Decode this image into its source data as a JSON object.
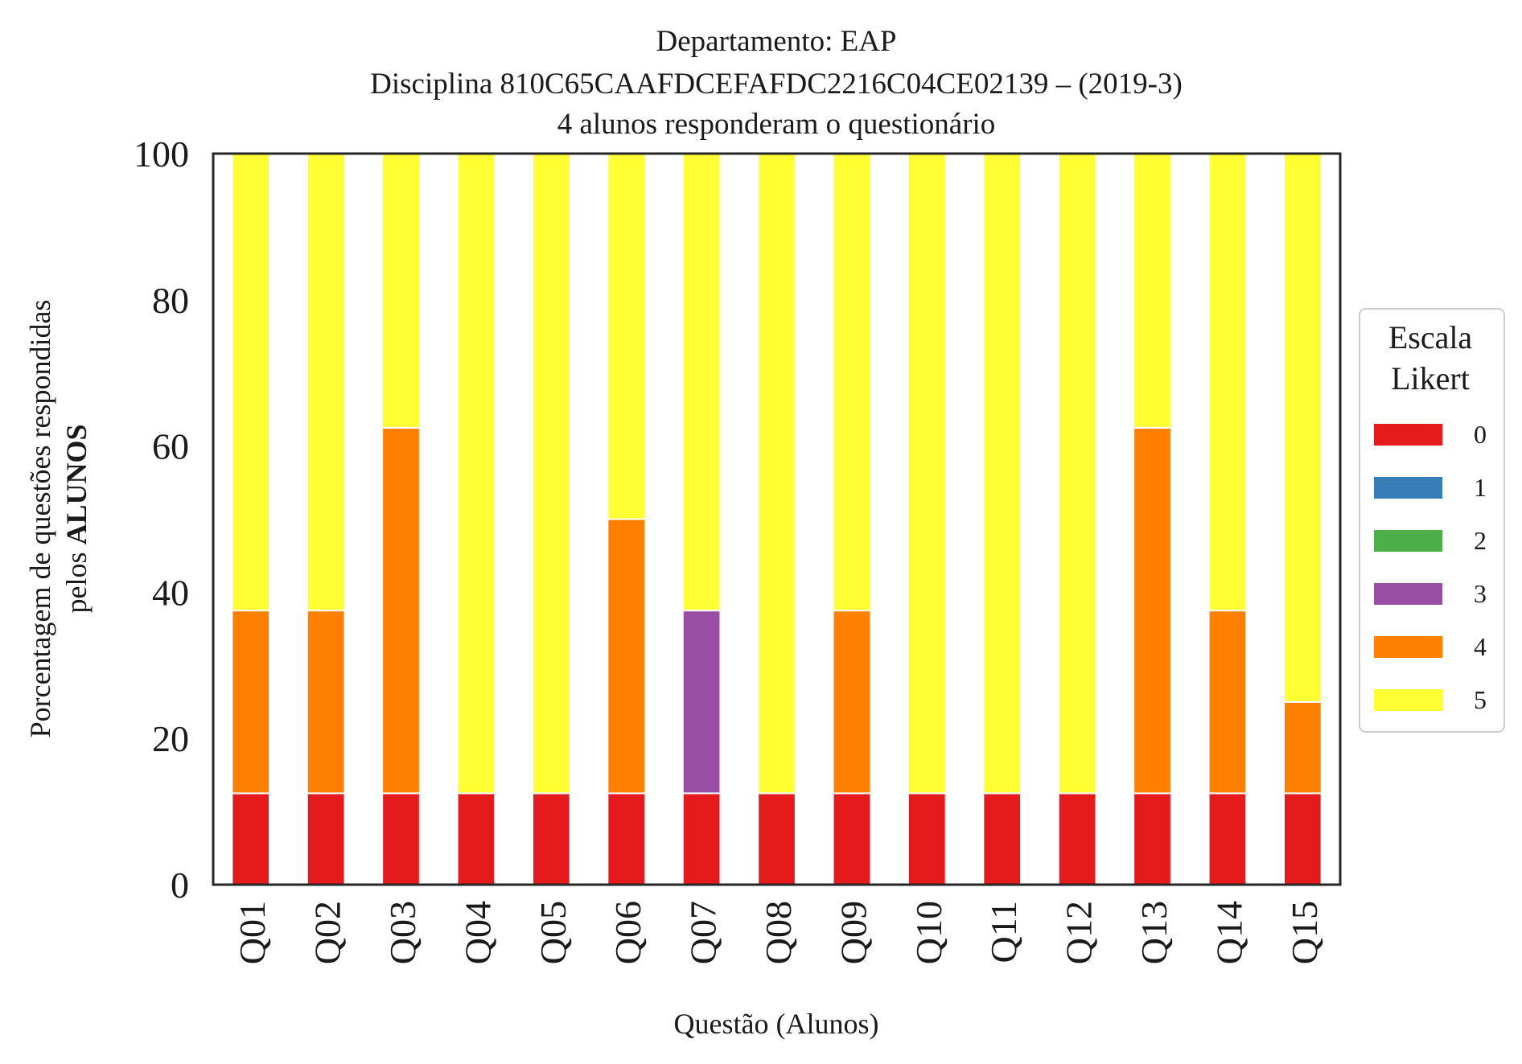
{
  "chart_data": {
    "type": "bar",
    "stacked": true,
    "title": [
      "Departamento: EAP",
      "Disciplina 810C65CAAFDCEFAFDC2216C04CE02139 – (2019-3)",
      "4 alunos responderam o questionário"
    ],
    "xlabel": "Questão (Alunos)",
    "ylabel_line1": "Porcentagem de questões respondidas",
    "ylabel_line2_prefix": "pelos ",
    "ylabel_line2_bold": "ALUNOS",
    "ylim": [
      0,
      100
    ],
    "yticks": [
      "0",
      "20",
      "40",
      "60",
      "80",
      "100"
    ],
    "grid": false,
    "legend": {
      "title": [
        "Escala",
        "Likert"
      ],
      "placement": "right-center"
    },
    "categories": [
      "Q01",
      "Q02",
      "Q03",
      "Q04",
      "Q05",
      "Q06",
      "Q07",
      "Q08",
      "Q09",
      "Q10",
      "Q11",
      "Q12",
      "Q13",
      "Q14",
      "Q15"
    ],
    "series": [
      {
        "name": "0",
        "color": "#e41a1c",
        "values": [
          12.5,
          12.5,
          12.5,
          12.5,
          12.5,
          12.5,
          12.5,
          12.5,
          12.5,
          12.5,
          12.5,
          12.5,
          12.5,
          12.5,
          12.5
        ]
      },
      {
        "name": "1",
        "color": "#377eb8",
        "values": [
          0,
          0,
          0,
          0,
          0,
          0,
          0,
          0,
          0,
          0,
          0,
          0,
          0,
          0,
          0
        ]
      },
      {
        "name": "2",
        "color": "#4daf4a",
        "values": [
          0,
          0,
          0,
          0,
          0,
          0,
          0,
          0,
          0,
          0,
          0,
          0,
          0,
          0,
          0
        ]
      },
      {
        "name": "3",
        "color": "#984ea3",
        "values": [
          0,
          0,
          0,
          0,
          0,
          0,
          25,
          0,
          0,
          0,
          0,
          0,
          0,
          0,
          0
        ]
      },
      {
        "name": "4",
        "color": "#ff7f00",
        "values": [
          25,
          25,
          50,
          0,
          0,
          37.5,
          0,
          0,
          25,
          0,
          0,
          0,
          50,
          25,
          12.5
        ]
      },
      {
        "name": "5",
        "color": "#ffff33",
        "values": [
          62.5,
          62.5,
          37.5,
          87.5,
          87.5,
          50,
          62.5,
          87.5,
          62.5,
          87.5,
          87.5,
          87.5,
          37.5,
          62.5,
          75
        ]
      }
    ]
  }
}
